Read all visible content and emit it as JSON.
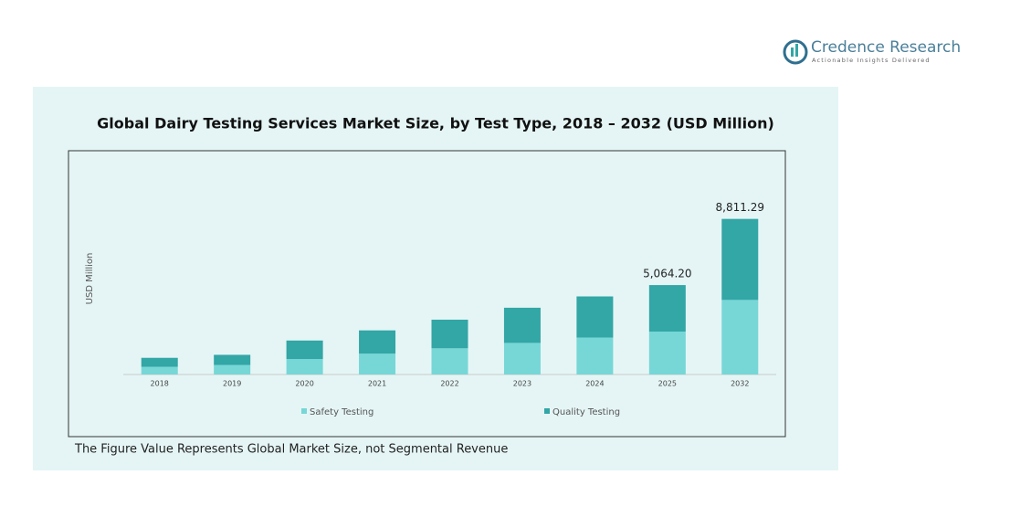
{
  "brand": {
    "name": "Credence Research",
    "tagline": "Actionable Insights Delivered"
  },
  "chart_data": {
    "type": "stacked-bar",
    "title": "Global Dairy Testing Services Market Size, by Test Type, 2018 – 2032 (USD Million)",
    "y_label": "USD Million",
    "categories": [
      "2018",
      "2019",
      "2020",
      "2021",
      "2022",
      "2023",
      "2024",
      "2025",
      "2032"
    ],
    "series": [
      {
        "name": "Safety Testing",
        "color": "#76d7d6",
        "values": [
          439,
          540,
          878,
          1182,
          1485,
          1789,
          2093,
          2431,
          4223
        ]
      },
      {
        "name": "Quality Testing",
        "color": "#33a6a6",
        "values": [
          506,
          574,
          1047,
          1317,
          1620,
          1992,
          2329,
          2633.2,
          4588.29
        ]
      }
    ],
    "totals": [
      null,
      null,
      null,
      null,
      null,
      null,
      null,
      5064.2,
      8811.29
    ],
    "total_labels": [
      null,
      null,
      null,
      null,
      null,
      null,
      null,
      "5,064.20",
      "8,811.29"
    ],
    "ylim": [
      0,
      9000
    ],
    "note": "The Figure Value Represents Global Market Size, not Segmental Revenue"
  }
}
